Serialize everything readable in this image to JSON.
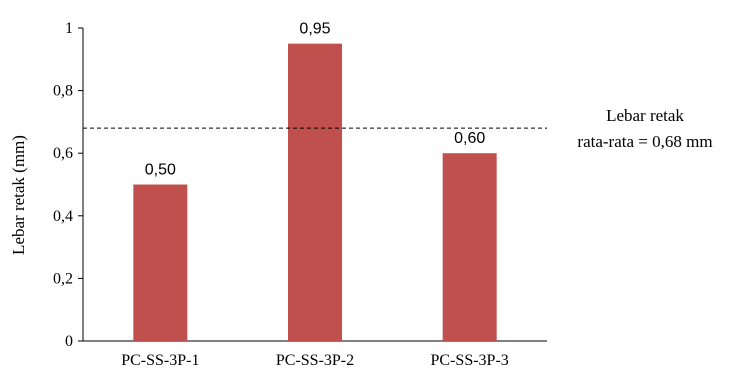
{
  "chart_data": {
    "type": "bar",
    "categories": [
      "PC-SS-3P-1",
      "PC-SS-3P-2",
      "PC-SS-3P-3"
    ],
    "values": [
      0.5,
      0.95,
      0.6
    ],
    "data_labels": [
      "0,50",
      "0,95",
      "0,60"
    ],
    "ylabel": "Lebar retak (mm)",
    "xlabel": "",
    "ylim": [
      0,
      1
    ],
    "yticks": [
      0,
      0.2,
      0.4,
      0.6,
      0.8,
      1
    ],
    "ytick_labels": [
      "0",
      "0,2",
      "0,4",
      "0,6",
      "0,8",
      "1"
    ],
    "bar_color": "#c0504d",
    "grid": false,
    "reference_line": {
      "value": 0.68,
      "style": "dashed",
      "label_line1": "Lebar retak",
      "label_line2": "rata-rata = 0,68 mm"
    }
  }
}
